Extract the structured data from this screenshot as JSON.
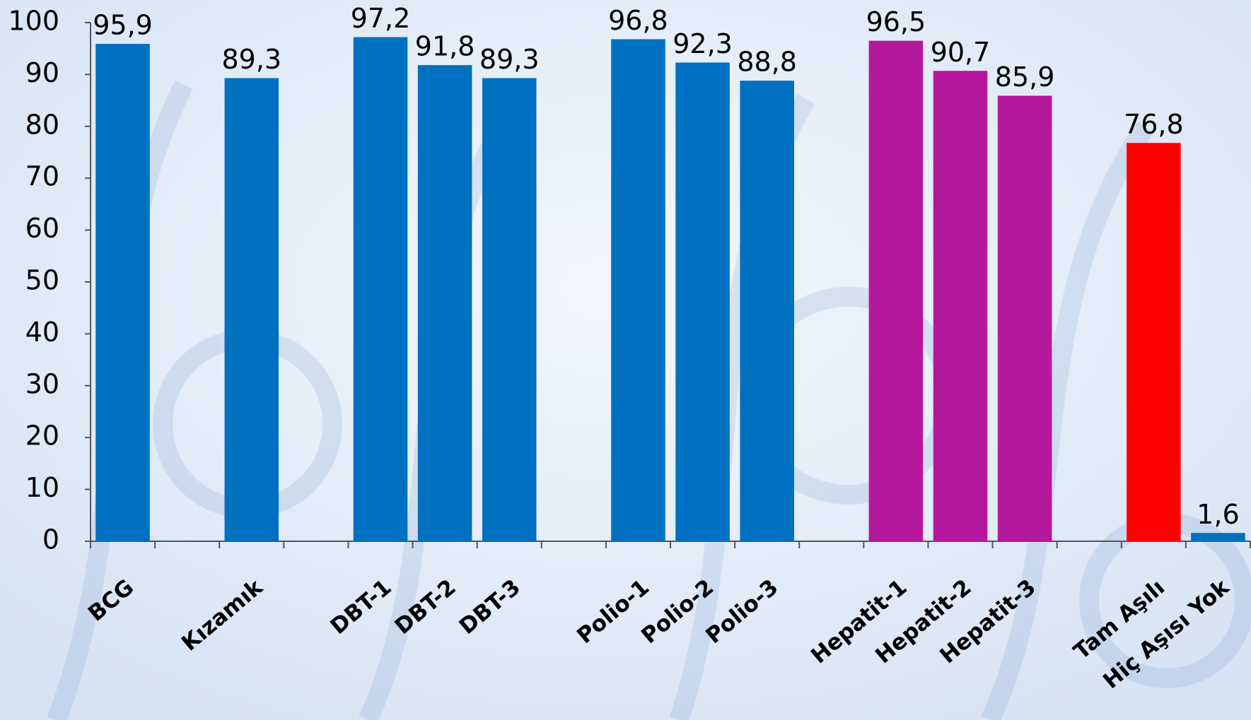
{
  "chart_data": {
    "type": "bar",
    "categories": [
      "BCG",
      null,
      "Kızamık",
      null,
      "DBT-1",
      "DBT-2",
      "DBT-3",
      null,
      "Polio-1",
      "Polio-2",
      "Polio-3",
      null,
      "Hepatit-1",
      "Hepatit-2",
      "Hepatit-3",
      null,
      "Tam Aşılı",
      "Hiç Aşısı Yok"
    ],
    "values": [
      95.9,
      null,
      89.3,
      null,
      97.2,
      91.8,
      89.3,
      null,
      96.8,
      92.3,
      88.8,
      null,
      96.5,
      90.7,
      85.9,
      null,
      76.8,
      1.6
    ],
    "value_labels": [
      "95,9",
      null,
      "89,3",
      null,
      "97,2",
      "91,8",
      "89,3",
      null,
      "96,8",
      "92,3",
      "88,8",
      null,
      "96,5",
      "90,7",
      "85,9",
      null,
      "76,8",
      "1,6"
    ],
    "colors": [
      "#0070c0",
      null,
      "#0070c0",
      null,
      "#0070c0",
      "#0070c0",
      "#0070c0",
      null,
      "#0070c0",
      "#0070c0",
      "#0070c0",
      null,
      "#b5189c",
      "#b5189c",
      "#b5189c",
      null,
      "#ff0000",
      "#0070c0"
    ],
    "ylim": [
      0,
      100
    ],
    "yticks": [
      0,
      10,
      20,
      30,
      40,
      50,
      60,
      70,
      80,
      90,
      100
    ],
    "grid": false
  }
}
